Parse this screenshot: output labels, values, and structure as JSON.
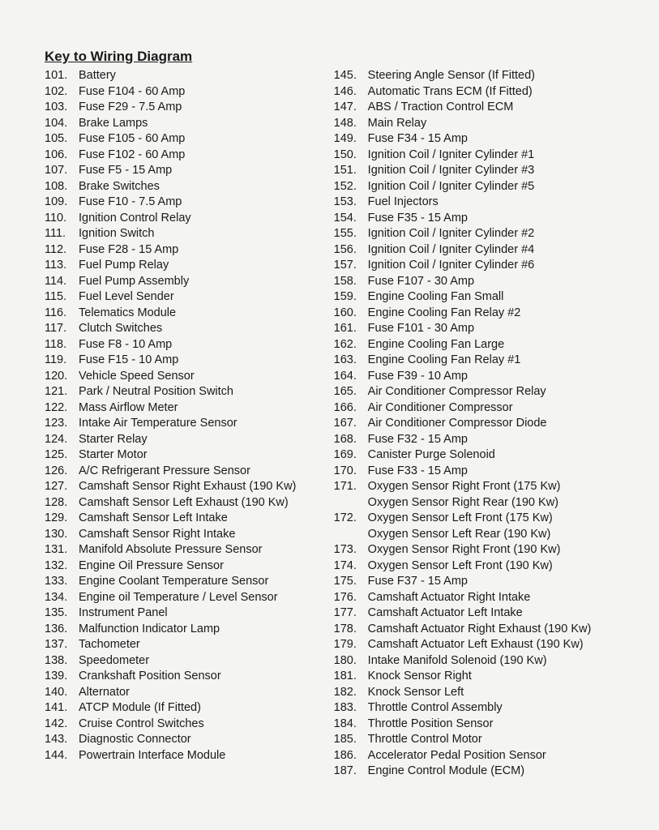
{
  "title": "Key to Wiring Diagram",
  "text_color": "#1a1a1a",
  "background_color": "#f4f4f2",
  "font_family": "Arial",
  "title_fontsize": 17,
  "body_fontsize": 14.5,
  "line_height": 19.5,
  "leftColumn": [
    {
      "num": "101.",
      "label": "Battery"
    },
    {
      "num": "102.",
      "label": "Fuse F104 - 60 Amp"
    },
    {
      "num": "103.",
      "label": "Fuse F29 - 7.5 Amp"
    },
    {
      "num": "104.",
      "label": "Brake Lamps"
    },
    {
      "num": "105.",
      "label": "Fuse F105 - 60 Amp"
    },
    {
      "num": "106.",
      "label": "Fuse F102 - 60 Amp"
    },
    {
      "num": "107.",
      "label": "Fuse F5 - 15 Amp"
    },
    {
      "num": "108.",
      "label": "Brake Switches"
    },
    {
      "num": "109.",
      "label": "Fuse F10 - 7.5 Amp"
    },
    {
      "num": "110.",
      "label": "Ignition Control Relay"
    },
    {
      "num": "111.",
      "label": "Ignition Switch"
    },
    {
      "num": "112.",
      "label": "Fuse F28 - 15 Amp"
    },
    {
      "num": "113.",
      "label": "Fuel Pump Relay"
    },
    {
      "num": "114.",
      "label": "Fuel Pump Assembly"
    },
    {
      "num": "115.",
      "label": "Fuel Level Sender"
    },
    {
      "num": "116.",
      "label": "Telematics Module"
    },
    {
      "num": "117.",
      "label": "Clutch Switches"
    },
    {
      "num": "118.",
      "label": "Fuse F8 - 10 Amp"
    },
    {
      "num": "119.",
      "label": "Fuse F15 - 10 Amp"
    },
    {
      "num": "120.",
      "label": "Vehicle Speed Sensor"
    },
    {
      "num": "121.",
      "label": "Park / Neutral Position Switch"
    },
    {
      "num": "122.",
      "label": "Mass Airflow Meter"
    },
    {
      "num": "123.",
      "label": "Intake Air Temperature Sensor"
    },
    {
      "num": "124.",
      "label": "Starter Relay"
    },
    {
      "num": "125.",
      "label": "Starter Motor"
    },
    {
      "num": "126.",
      "label": "A/C Refrigerant Pressure Sensor"
    },
    {
      "num": "127.",
      "label": "Camshaft Sensor Right Exhaust (190 Kw)"
    },
    {
      "num": "128.",
      "label": "Camshaft Sensor Left Exhaust (190 Kw)"
    },
    {
      "num": "129.",
      "label": "Camshaft Sensor Left Intake"
    },
    {
      "num": "130.",
      "label": "Camshaft Sensor Right Intake"
    },
    {
      "num": "131.",
      "label": "Manifold Absolute Pressure Sensor"
    },
    {
      "num": "132.",
      "label": "Engine Oil Pressure Sensor"
    },
    {
      "num": "133.",
      "label": "Engine Coolant Temperature Sensor"
    },
    {
      "num": "134.",
      "label": "Engine oil Temperature / Level Sensor"
    },
    {
      "num": "135.",
      "label": "Instrument Panel"
    },
    {
      "num": "136.",
      "label": "Malfunction Indicator Lamp"
    },
    {
      "num": "137.",
      "label": "Tachometer"
    },
    {
      "num": "138.",
      "label": "Speedometer"
    },
    {
      "num": "139.",
      "label": "Crankshaft Position Sensor"
    },
    {
      "num": "140.",
      "label": "Alternator"
    },
    {
      "num": "141.",
      "label": "ATCP Module (If Fitted)"
    },
    {
      "num": "142.",
      "label": "Cruise Control Switches"
    },
    {
      "num": "143.",
      "label": "Diagnostic Connector"
    },
    {
      "num": "144.",
      "label": "Powertrain Interface Module"
    }
  ],
  "rightColumn": [
    {
      "num": "145.",
      "label": "Steering Angle Sensor (If Fitted)"
    },
    {
      "num": "146.",
      "label": "Automatic Trans ECM (If Fitted)"
    },
    {
      "num": "147.",
      "label": "ABS / Traction Control ECM"
    },
    {
      "num": "148.",
      "label": "Main Relay"
    },
    {
      "num": "149.",
      "label": "Fuse F34 - 15 Amp"
    },
    {
      "num": "150.",
      "label": "Ignition Coil / Igniter Cylinder #1"
    },
    {
      "num": "151.",
      "label": "Ignition Coil / Igniter Cylinder #3"
    },
    {
      "num": "152.",
      "label": "Ignition Coil / Igniter Cylinder #5"
    },
    {
      "num": "153.",
      "label": "Fuel Injectors"
    },
    {
      "num": "154.",
      "label": "Fuse F35 - 15 Amp"
    },
    {
      "num": "155.",
      "label": "Ignition Coil / Igniter Cylinder #2"
    },
    {
      "num": "156.",
      "label": "Ignition Coil / Igniter Cylinder #4"
    },
    {
      "num": "157.",
      "label": "Ignition Coil / Igniter Cylinder #6"
    },
    {
      "num": "158.",
      "label": "Fuse F107 - 30 Amp"
    },
    {
      "num": "159.",
      "label": "Engine Cooling Fan Small"
    },
    {
      "num": "160.",
      "label": "Engine Cooling Fan Relay #2"
    },
    {
      "num": "161.",
      "label": "Fuse F101 - 30 Amp"
    },
    {
      "num": "162.",
      "label": "Engine Cooling Fan Large"
    },
    {
      "num": "163.",
      "label": "Engine Cooling Fan Relay #1"
    },
    {
      "num": "164.",
      "label": "Fuse F39 - 10 Amp"
    },
    {
      "num": "165.",
      "label": "Air Conditioner Compressor Relay"
    },
    {
      "num": "166.",
      "label": "Air Conditioner Compressor"
    },
    {
      "num": "167.",
      "label": "Air Conditioner Compressor Diode"
    },
    {
      "num": "168.",
      "label": "Fuse F32 - 15 Amp"
    },
    {
      "num": "169.",
      "label": "Canister Purge Solenoid"
    },
    {
      "num": "170.",
      "label": "Fuse F33 - 15 Amp"
    },
    {
      "num": "171.",
      "label": "Oxygen Sensor Right Front (175 Kw)"
    },
    {
      "num": "",
      "label": "Oxygen Sensor Right Rear (190 Kw)",
      "continuation": true
    },
    {
      "num": "172.",
      "label": "Oxygen Sensor Left Front (175 Kw)"
    },
    {
      "num": "",
      "label": "Oxygen Sensor Left Rear (190 Kw)",
      "continuation": true
    },
    {
      "num": "173.",
      "label": "Oxygen Sensor Right Front (190 Kw)"
    },
    {
      "num": "174.",
      "label": "Oxygen Sensor Left Front (190 Kw)"
    },
    {
      "num": "175.",
      "label": "Fuse F37 - 15 Amp"
    },
    {
      "num": "176.",
      "label": "Camshaft Actuator Right Intake"
    },
    {
      "num": "177.",
      "label": "Camshaft Actuator Left Intake"
    },
    {
      "num": "178.",
      "label": "Camshaft Actuator Right Exhaust (190 Kw)"
    },
    {
      "num": "179.",
      "label": "Camshaft Actuator Left Exhaust (190 Kw)"
    },
    {
      "num": "180.",
      "label": "Intake Manifold Solenoid (190 Kw)"
    },
    {
      "num": "181.",
      "label": "Knock Sensor Right"
    },
    {
      "num": "182.",
      "label": "Knock Sensor Left"
    },
    {
      "num": "183.",
      "label": "Throttle Control Assembly"
    },
    {
      "num": "184.",
      "label": "Throttle Position Sensor"
    },
    {
      "num": "185.",
      "label": "Throttle Control Motor"
    },
    {
      "num": "186.",
      "label": "Accelerator Pedal Position Sensor"
    },
    {
      "num": "187.",
      "label": "Engine Control Module (ECM)"
    }
  ]
}
